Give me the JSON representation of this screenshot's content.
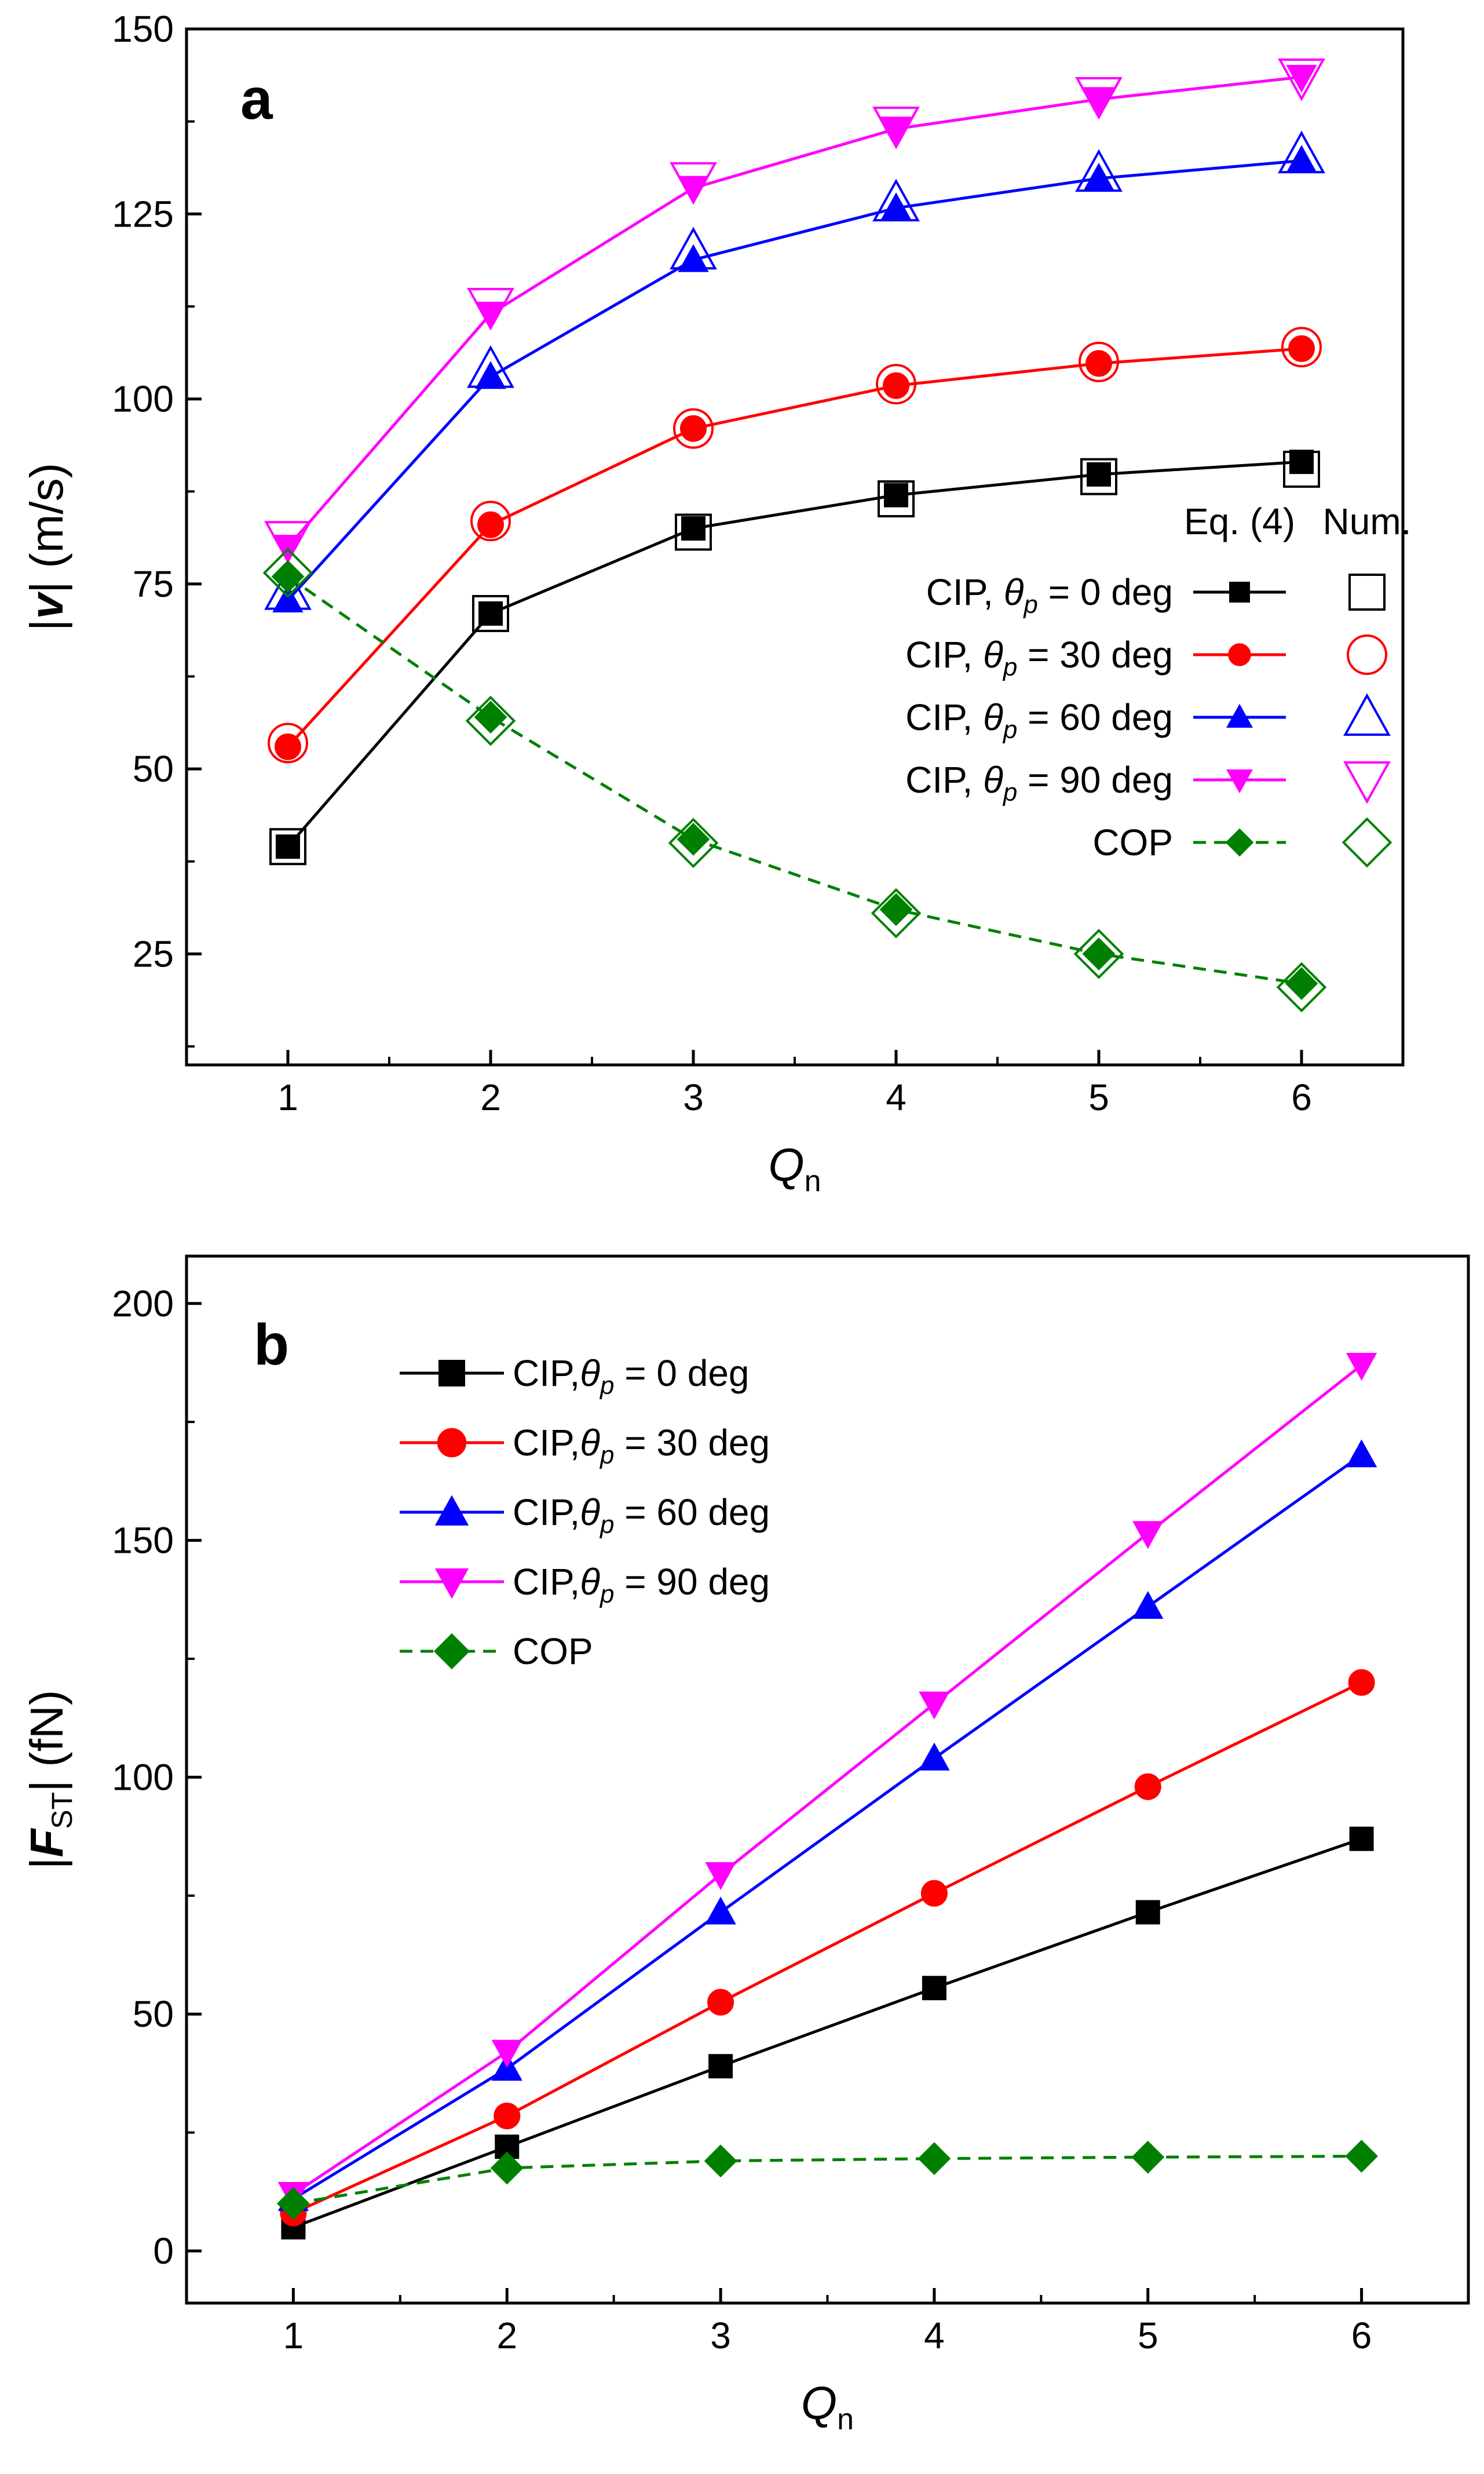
{
  "chart_data": [
    {
      "type": "line",
      "panel_label": "a",
      "xlabel": "Q",
      "xlabel_sub": "n",
      "ylabel_pre": "|",
      "ylabel_var": "v",
      "ylabel_post": "| (m/s)",
      "x": [
        1,
        2,
        3,
        4,
        5,
        6
      ],
      "xlim": [
        0.5,
        6.5
      ],
      "ylim": [
        10,
        150
      ],
      "xticks": [
        "1",
        "2",
        "3",
        "4",
        "5",
        "6"
      ],
      "yticks": [
        25,
        50,
        75,
        100,
        125,
        150
      ],
      "legend_position": "center-right",
      "legend_headers": {
        "model": "Eq. (4)",
        "numeric": "Num."
      },
      "series": [
        {
          "name": "CIP, θp = 0 deg",
          "label_prefix": "CIP, ",
          "label_theta": "θ",
          "label_sub": "p",
          "label_suffix": " = 0 deg",
          "color": "#000000",
          "marker": "square",
          "dashed": false,
          "values": [
            39.5,
            71,
            82.5,
            87,
            89.8,
            91.5
          ],
          "num_values": [
            39.5,
            71,
            82,
            86.5,
            89.5,
            90.5
          ]
        },
        {
          "name": "CIP, θp = 30 deg",
          "label_prefix": "CIP, ",
          "label_theta": "θ",
          "label_sub": "p",
          "label_suffix": " = 30 deg",
          "color": "#ff0000",
          "marker": "circle",
          "dashed": false,
          "values": [
            53,
            83,
            96,
            101.8,
            104.8,
            106.8
          ],
          "num_values": [
            53.5,
            83.5,
            96,
            102,
            105,
            107
          ]
        },
        {
          "name": "CIP, θp = 60 deg",
          "label_prefix": "CIP, ",
          "label_theta": "θ",
          "label_sub": "p",
          "label_suffix": " = 60 deg",
          "color": "#0000ff",
          "marker": "triangle-up",
          "dashed": false,
          "values": [
            72.8,
            103,
            118.8,
            125.8,
            129.8,
            132.2
          ],
          "num_values": [
            74,
            104,
            120,
            126.5,
            130.5,
            133
          ]
        },
        {
          "name": "CIP, θp = 90 deg",
          "label_prefix": "CIP, ",
          "label_theta": "θ",
          "label_sub": "p",
          "label_suffix": " = 90 deg",
          "color": "#ff00ff",
          "marker": "triangle-down",
          "dashed": false,
          "values": [
            80,
            111.5,
            128.5,
            136.5,
            140.5,
            143.5
          ],
          "num_values": [
            81,
            112.5,
            129.5,
            137,
            141,
            143.5
          ]
        },
        {
          "name": "COP",
          "label_prefix": "COP",
          "label_theta": "",
          "label_sub": "",
          "label_suffix": "",
          "color": "#008000",
          "marker": "diamond",
          "dashed": true,
          "values": [
            76,
            57,
            40.5,
            31,
            25,
            21
          ],
          "num_values": [
            76.5,
            56.5,
            40,
            30.5,
            25,
            20.5
          ]
        }
      ]
    },
    {
      "type": "line",
      "panel_label": "b",
      "xlabel": "Q",
      "xlabel_sub": "n",
      "ylabel_pre": "|",
      "ylabel_var": "F",
      "ylabel_sub": "ST",
      "ylabel_post": "| (fN)",
      "x": [
        1,
        2,
        3,
        4,
        5,
        6
      ],
      "xlim": [
        0.5,
        6.5
      ],
      "ylim": [
        -11,
        210
      ],
      "xticks": [
        "1",
        "2",
        "3",
        "4",
        "5",
        "6"
      ],
      "yticks": [
        0,
        50,
        100,
        150,
        200
      ],
      "legend_position": "top-left",
      "series": [
        {
          "name": "CIP,θp = 0 deg",
          "label_prefix": "CIP,",
          "label_theta": "θ",
          "label_sub": "p",
          "label_suffix": " = 0 deg",
          "color": "#000000",
          "marker": "square",
          "dashed": false,
          "values": [
            5,
            22,
            39,
            55.5,
            71.5,
            87
          ]
        },
        {
          "name": "CIP,θp = 30 deg",
          "label_prefix": "CIP,",
          "label_theta": "θ",
          "label_sub": "p",
          "label_suffix": " = 30 deg",
          "color": "#ff0000",
          "marker": "circle",
          "dashed": false,
          "values": [
            8,
            28.5,
            52.5,
            75.5,
            98,
            120
          ]
        },
        {
          "name": "CIP,θp = 60 deg",
          "label_prefix": "CIP,",
          "label_theta": "θ",
          "label_sub": "p",
          "label_suffix": " = 60 deg",
          "color": "#0000ff",
          "marker": "triangle-up",
          "dashed": false,
          "values": [
            11,
            38.5,
            71.5,
            104,
            136,
            168
          ]
        },
        {
          "name": "CIP,θp = 90 deg",
          "label_prefix": "CIP,",
          "label_theta": "θ",
          "label_sub": "p",
          "label_suffix": " = 90 deg",
          "color": "#ff00ff",
          "marker": "triangle-down",
          "dashed": false,
          "values": [
            12,
            42,
            79.5,
            115.5,
            151.5,
            187
          ]
        },
        {
          "name": "COP",
          "label_prefix": "COP",
          "label_theta": "",
          "label_sub": "",
          "label_suffix": "",
          "color": "#008000",
          "marker": "diamond",
          "dashed": true,
          "values": [
            10,
            17.5,
            19,
            19.5,
            19.8,
            20
          ]
        }
      ]
    }
  ]
}
